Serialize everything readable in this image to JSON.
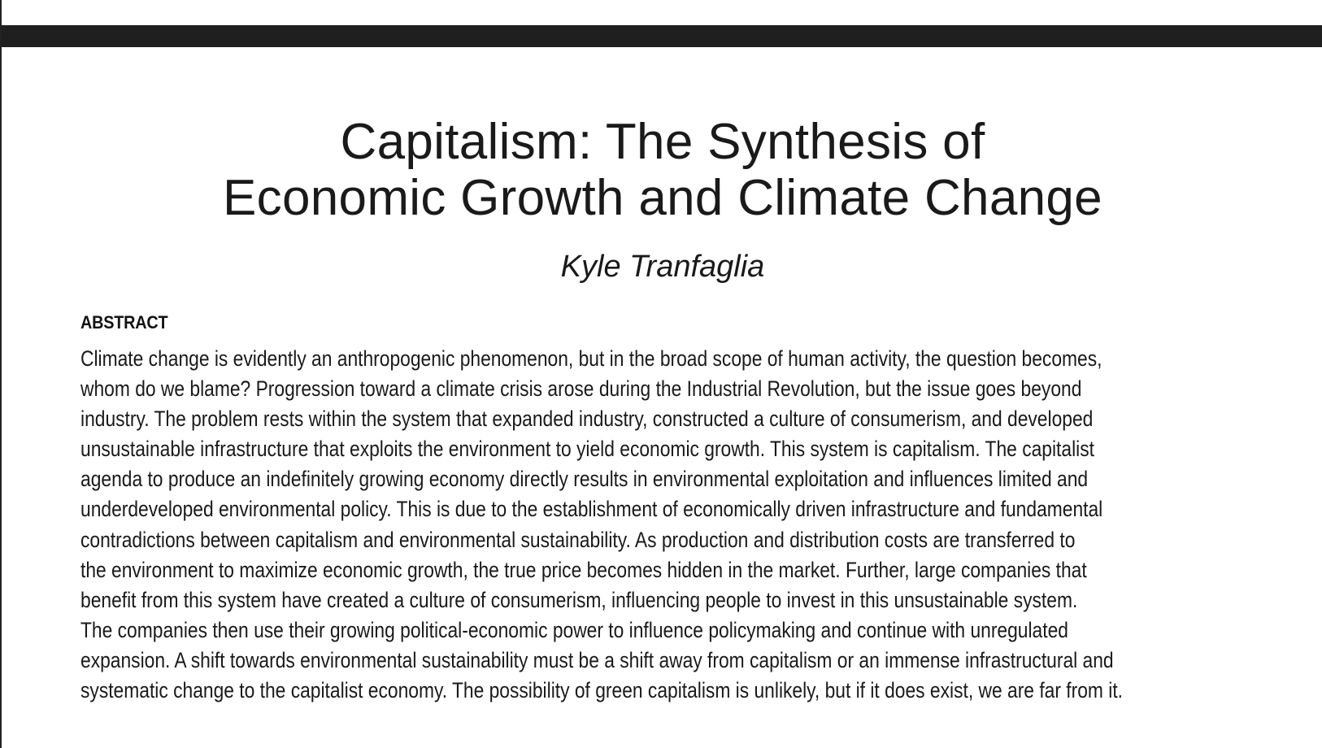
{
  "paper": {
    "title_lines": [
      "Capitalism: The Synthesis of",
      "Economic Growth and Climate Change"
    ],
    "author": "Kyle Tranfaglia",
    "abstract": {
      "heading": "ABSTRACT",
      "lines": [
        "Climate change is evidently an anthropogenic phenomenon, but in the broad scope of human activity, the question becomes,",
        "whom do we blame? Progression toward a climate crisis arose during the Industrial Revolution, but the issue goes beyond",
        "industry. The problem rests within the system that expanded industry, constructed a culture of consumerism, and developed",
        "unsustainable infrastructure that exploits the environment to yield economic growth. This system is capitalism. The capitalist",
        "agenda to produce an indefinitely growing economy directly results in environmental exploitation and influences limited and",
        "underdeveloped environmental policy. This is due to the establishment of economically driven infrastructure and fundamental",
        "contradictions between capitalism and environmental sustainability. As production and distribution costs are transferred to",
        "the environment to maximize economic growth, the true price becomes hidden in the market. Further, large companies that",
        "benefit from this system have created a culture of consumerism, influencing people to invest in this unsustainable system.",
        "The companies then use their growing political-economic power to influence policymaking and continue with unregulated",
        "expansion. A shift towards environmental sustainability must be a shift away from capitalism or an immense infrastructural and",
        "systematic change to the capitalist economy. The possibility of green capitalism is unlikely, but if it does exist, we are far from it."
      ]
    }
  },
  "colors": {
    "top_bar": "#1f1f1f",
    "text": "#1a1a1a",
    "background": "#ffffff"
  }
}
